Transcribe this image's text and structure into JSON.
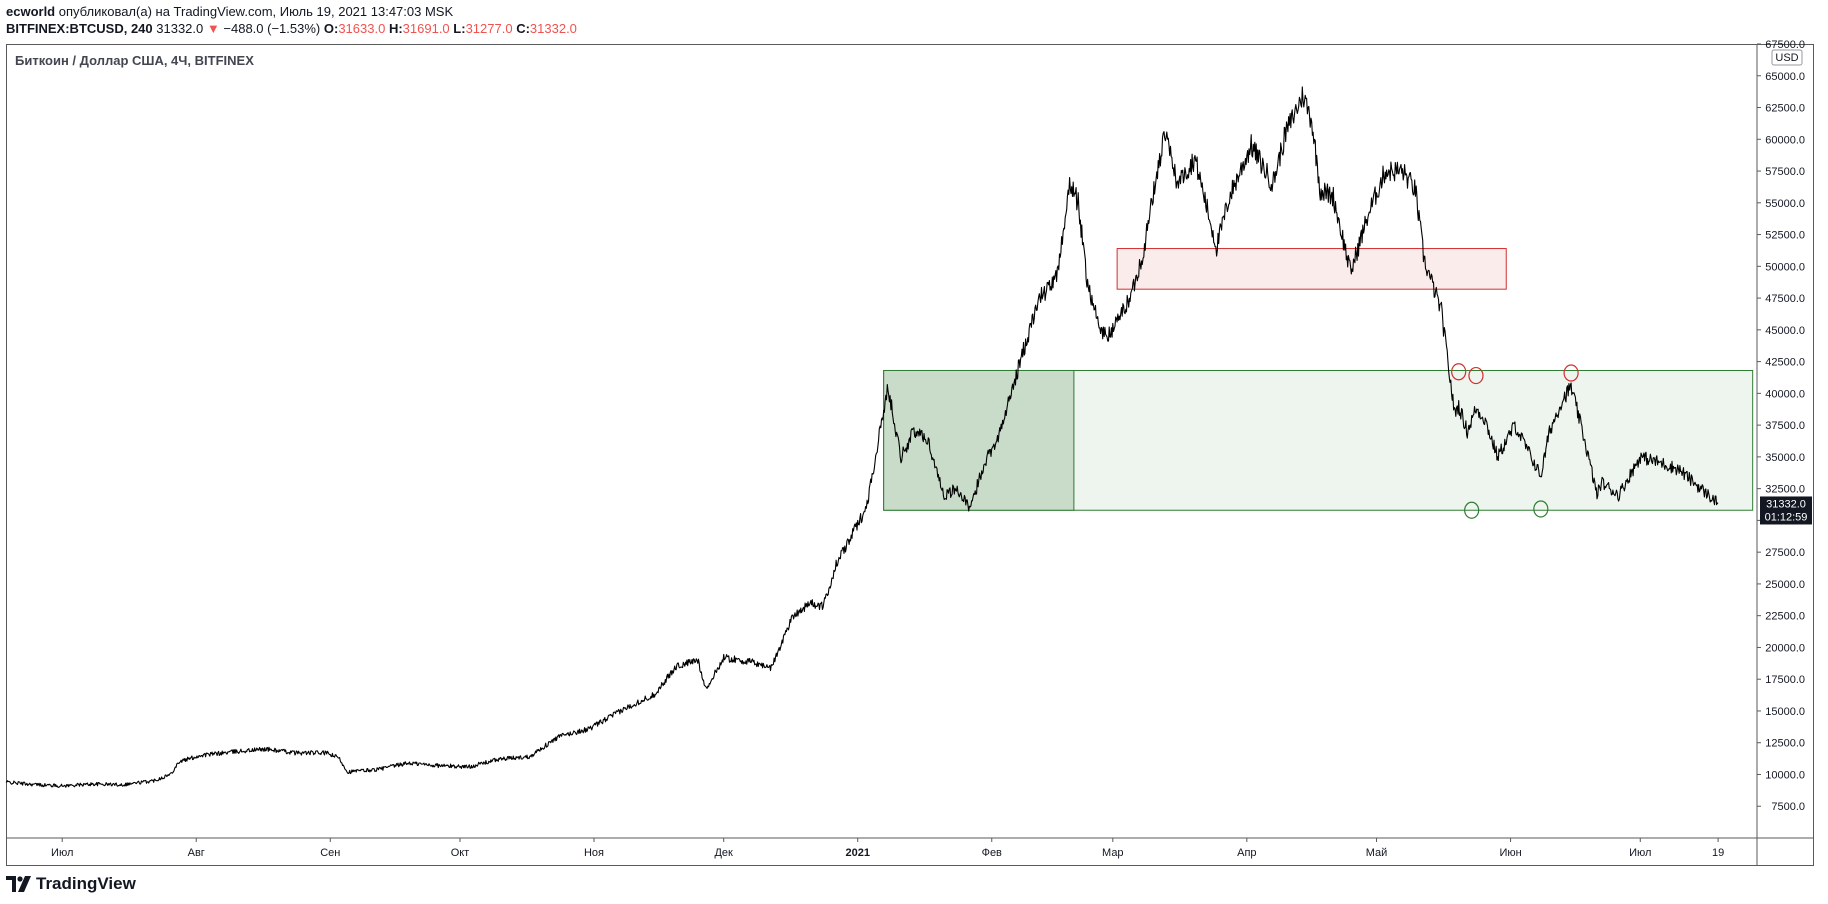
{
  "header": {
    "author": "ecworld",
    "published_text": "опубликовал(а) на TradingView.com, Июль 19, 2021 13:47:03 MSK",
    "symbol": "BITFINEX:BTCUSD, 240",
    "last": "31332.0",
    "change_arrow": "▼",
    "change": "−488.0 (−1.53%)",
    "o_label": "O:",
    "o_value": "31633.0",
    "h_label": "H:",
    "h_value": "31691.0",
    "l_label": "L:",
    "l_value": "31277.0",
    "c_label": "C:",
    "c_value": "31332.0"
  },
  "chart_title": "Биткоин / Доллар США, 4Ч, BITFINEX",
  "currency_badge": "USD",
  "price_tag": {
    "price": "31332.0",
    "countdown": "01:12:59"
  },
  "logo_text": "TradingView",
  "colors": {
    "line": "#000000",
    "red_zone_fill": "#fbecec",
    "red_zone_stroke": "#d32f2f",
    "green_zone_fill": "#eef5ee",
    "green_zone_dark_fill": "#c9dcc9",
    "green_zone_stroke": "#2e7d32",
    "circle_red": "#d32f2f",
    "circle_green": "#2e7d32"
  },
  "chart_data": {
    "type": "line",
    "title": "Биткоин / Доллар США, 4Ч, BITFINEX",
    "ylim": [
      5000,
      67500
    ],
    "y_ticks": [
      7500,
      10000,
      12500,
      15000,
      17500,
      20000,
      22500,
      25000,
      27500,
      30000,
      32500,
      35000,
      37500,
      40000,
      42500,
      45000,
      47500,
      50000,
      52500,
      55000,
      57500,
      60000,
      62500,
      65000,
      67500
    ],
    "y_tick_labels": [
      "7500.0",
      "10000.0",
      "12500.0",
      "15000.0",
      "17500.0",
      "20000.0",
      "22500.0",
      "25000.0",
      "27500.0",
      "30000.0",
      "32500.0",
      "35000.0",
      "37500.0",
      "40000.0",
      "42500.0",
      "45000.0",
      "47500.0",
      "50000.0",
      "52500.0",
      "55000.0",
      "57500.0",
      "60000.0",
      "62500.0",
      "65000.0",
      "67500.0"
    ],
    "xlim": [
      "2020-06-18",
      "2021-07-28"
    ],
    "x_ticks": [
      {
        "date": "2020-07-01",
        "label": "Июл",
        "bold": false
      },
      {
        "date": "2020-08-01",
        "label": "Авг",
        "bold": false
      },
      {
        "date": "2020-09-01",
        "label": "Сен",
        "bold": false
      },
      {
        "date": "2020-10-01",
        "label": "Окт",
        "bold": false
      },
      {
        "date": "2020-11-01",
        "label": "Ноя",
        "bold": false
      },
      {
        "date": "2020-12-01",
        "label": "Дек",
        "bold": false
      },
      {
        "date": "2021-01-01",
        "label": "2021",
        "bold": true
      },
      {
        "date": "2021-02-01",
        "label": "Фев",
        "bold": false
      },
      {
        "date": "2021-03-01",
        "label": "Мар",
        "bold": false
      },
      {
        "date": "2021-04-01",
        "label": "Апр",
        "bold": false
      },
      {
        "date": "2021-05-01",
        "label": "Май",
        "bold": false
      },
      {
        "date": "2021-06-01",
        "label": "Июн",
        "bold": false
      },
      {
        "date": "2021-07-01",
        "label": "Июл",
        "bold": false
      },
      {
        "date": "2021-07-19",
        "label": "19",
        "bold": false
      }
    ],
    "series": [
      {
        "x": [
          "2020-06-18",
          "2020-06-25",
          "2020-07-01",
          "2020-07-08",
          "2020-07-15",
          "2020-07-22",
          "2020-07-26",
          "2020-07-28",
          "2020-08-02",
          "2020-08-10",
          "2020-08-17",
          "2020-08-24",
          "2020-08-31",
          "2020-09-03",
          "2020-09-05",
          "2020-09-12",
          "2020-09-19",
          "2020-09-26",
          "2020-10-03",
          "2020-10-10",
          "2020-10-17",
          "2020-10-24",
          "2020-10-31",
          "2020-11-05",
          "2020-11-10",
          "2020-11-15",
          "2020-11-20",
          "2020-11-25",
          "2020-11-27",
          "2020-12-01",
          "2020-12-08",
          "2020-12-12",
          "2020-12-17",
          "2020-12-21",
          "2020-12-24",
          "2020-12-27",
          "2021-01-03",
          "2021-01-08",
          "2021-01-11",
          "2021-01-14",
          "2021-01-17",
          "2021-01-21",
          "2021-01-24",
          "2021-01-27",
          "2021-01-30",
          "2021-02-03",
          "2021-02-08",
          "2021-02-12",
          "2021-02-16",
          "2021-02-19",
          "2021-02-21",
          "2021-02-23",
          "2021-02-26",
          "2021-02-28",
          "2021-03-05",
          "2021-03-08",
          "2021-03-10",
          "2021-03-13",
          "2021-03-16",
          "2021-03-20",
          "2021-03-25",
          "2021-03-28",
          "2021-04-02",
          "2021-04-07",
          "2021-04-10",
          "2021-04-14",
          "2021-04-16",
          "2021-04-18",
          "2021-04-21",
          "2021-04-25",
          "2021-04-29",
          "2021-05-03",
          "2021-05-07",
          "2021-05-10",
          "2021-05-12",
          "2021-05-13",
          "2021-05-16",
          "2021-05-19",
          "2021-05-20",
          "2021-05-22",
          "2021-05-24",
          "2021-05-26",
          "2021-05-29",
          "2021-06-02",
          "2021-06-05",
          "2021-06-08",
          "2021-06-10",
          "2021-06-13",
          "2021-06-15",
          "2021-06-18",
          "2021-06-21",
          "2021-06-22",
          "2021-06-26",
          "2021-07-01",
          "2021-07-06",
          "2021-07-10",
          "2021-07-14",
          "2021-07-19"
        ],
        "y": [
          9400,
          9200,
          9100,
          9250,
          9200,
          9500,
          10000,
          11000,
          11500,
          11800,
          12000,
          11700,
          11700,
          11300,
          10200,
          10400,
          10900,
          10700,
          10600,
          11200,
          11400,
          13000,
          13600,
          14600,
          15500,
          16300,
          18500,
          19000,
          16700,
          19200,
          18800,
          18400,
          22500,
          23500,
          23200,
          26500,
          31000,
          40500,
          35000,
          37000,
          36500,
          32000,
          32500,
          30800,
          34300,
          37000,
          43000,
          47500,
          49000,
          56500,
          55000,
          49000,
          45000,
          44500,
          47500,
          51000,
          55000,
          60500,
          56500,
          58500,
          51500,
          55500,
          59500,
          56500,
          60500,
          63500,
          61500,
          56000,
          55500,
          49500,
          54000,
          57500,
          57500,
          56000,
          50500,
          49500,
          46500,
          38500,
          39000,
          37000,
          38800,
          38000,
          35000,
          37500,
          35500,
          33500,
          37000,
          39500,
          40500,
          36500,
          32000,
          33000,
          32000,
          35000,
          34500,
          34000,
          32800,
          31332
        ]
      }
    ],
    "zones": [
      {
        "kind": "resistance",
        "x0": "2021-03-02",
        "x1": "2021-05-31",
        "y0": 48200,
        "y1": 51400
      },
      {
        "kind": "support-range",
        "x0": "2021-01-07",
        "x1": "2021-07-27",
        "y0": 30800,
        "y1": 41800
      },
      {
        "kind": "support-range-highlight",
        "x0": "2021-01-07",
        "x1": "2021-02-20",
        "y0": 30800,
        "y1": 41800
      }
    ],
    "markers": [
      {
        "kind": "red-circle",
        "x": "2021-05-20",
        "y": 41700
      },
      {
        "kind": "red-circle",
        "x": "2021-05-24",
        "y": 41400
      },
      {
        "kind": "red-circle",
        "x": "2021-06-15",
        "y": 41600
      },
      {
        "kind": "green-circle",
        "x": "2021-05-23",
        "y": 30800
      },
      {
        "kind": "green-circle",
        "x": "2021-06-08",
        "y": 30900
      }
    ]
  }
}
